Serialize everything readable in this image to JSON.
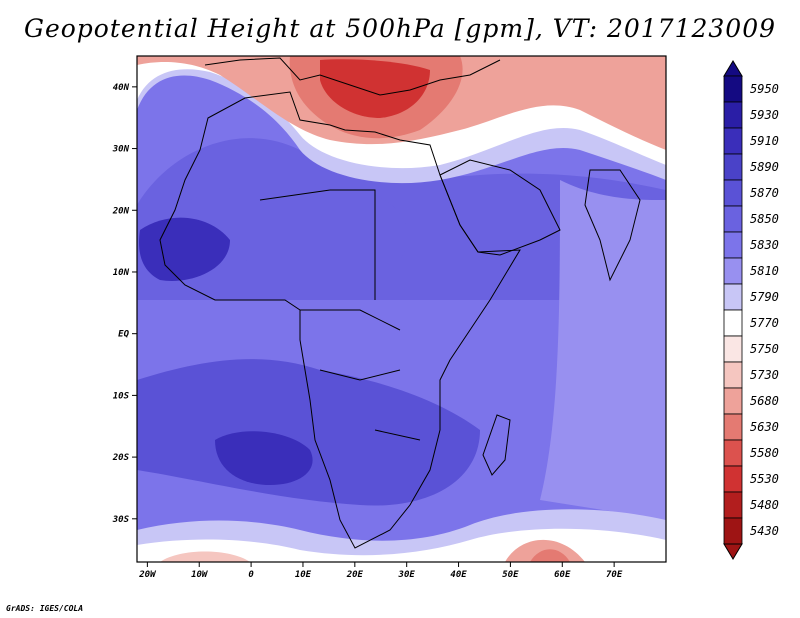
{
  "title": "Geopotential Height at 500hPa [gpm], VT: 2017123009",
  "credit": "GrADS: IGES/COLA",
  "map": {
    "region": "Africa, Arabia and western Indian Ocean",
    "lon_range": [
      -22,
      80
    ],
    "lat_range": [
      -37,
      45
    ],
    "x_ticks": [
      {
        "lon": -20,
        "label": "20W"
      },
      {
        "lon": -10,
        "label": "10W"
      },
      {
        "lon": 0,
        "label": "0"
      },
      {
        "lon": 10,
        "label": "10E"
      },
      {
        "lon": 20,
        "label": "20E"
      },
      {
        "lon": 30,
        "label": "30E"
      },
      {
        "lon": 40,
        "label": "40E"
      },
      {
        "lon": 50,
        "label": "50E"
      },
      {
        "lon": 60,
        "label": "60E"
      },
      {
        "lon": 70,
        "label": "70E"
      }
    ],
    "y_ticks": [
      {
        "lat": 40,
        "label": "40N"
      },
      {
        "lat": 30,
        "label": "30N"
      },
      {
        "lat": 20,
        "label": "20N"
      },
      {
        "lat": 10,
        "label": "10N"
      },
      {
        "lat": 0,
        "label": "EQ"
      },
      {
        "lat": -10,
        "label": "10S"
      },
      {
        "lat": -20,
        "label": "20S"
      },
      {
        "lat": -30,
        "label": "30S"
      }
    ]
  },
  "colorbar": {
    "levels": [
      "5950",
      "5930",
      "5910",
      "5890",
      "5870",
      "5850",
      "5830",
      "5810",
      "5790",
      "5770",
      "5750",
      "5730",
      "5680",
      "5630",
      "5580",
      "5530",
      "5480",
      "5430"
    ],
    "colors": [
      "#140a82",
      "#2a1ea6",
      "#3a2eba",
      "#4a42c8",
      "#5a52d6",
      "#6a62e0",
      "#7c74ea",
      "#9890f0",
      "#c8c6f6",
      "#ffffff",
      "#fae6e4",
      "#f5c6c0",
      "#eea29a",
      "#e47a72",
      "#dc524e",
      "#d03232",
      "#b21e1e",
      "#9e1414"
    ]
  },
  "field_colors": {
    "high": "#3a2eba",
    "mid": "#6a62e0",
    "low_mid": "#9890f0",
    "transition": "#c8c6f6",
    "white": "#ffffff",
    "low": "#eea29a",
    "lower": "#e47a72",
    "lowest": "#d03232"
  }
}
